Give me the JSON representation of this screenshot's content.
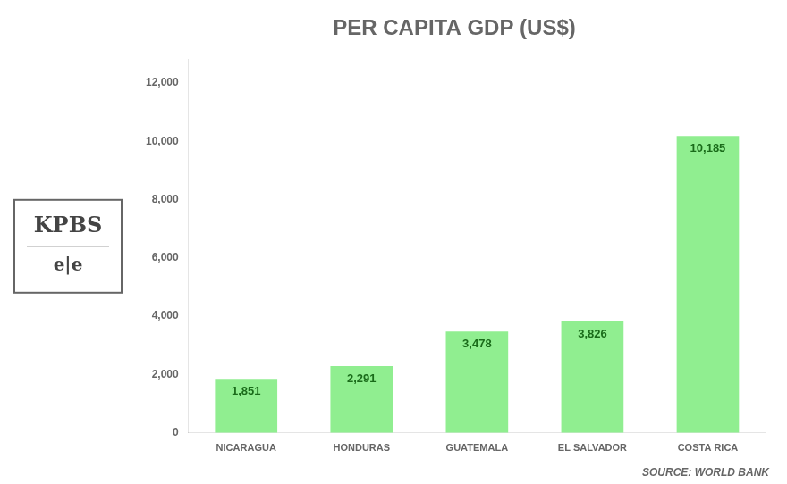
{
  "chart_data": {
    "type": "bar",
    "title": "PER CAPITA GDP (US$)",
    "categories": [
      "NICARAGUA",
      "HONDURAS",
      "GUATEMALA",
      "EL SALVADOR",
      "COSTA RICA"
    ],
    "values": [
      1851,
      2291,
      3478,
      3826,
      10185
    ],
    "value_labels": [
      "1,851",
      "2,291",
      "3,478",
      "3,826",
      "10,185"
    ],
    "data_labels": true,
    "color": "#90EE90",
    "ylim": [
      0,
      12800
    ],
    "yticks": [
      0,
      {
        "value": 2000,
        "label": "2,000"
      },
      {
        "value": 4000,
        "label": "4,000"
      },
      {
        "value": 6000,
        "label": "6,000"
      },
      {
        "value": 8000,
        "label": "8,000"
      },
      {
        "value": 10000,
        "label": "10,000"
      },
      {
        "value": 12000,
        "label": "12,000"
      }
    ],
    "grid": false,
    "annotations": [
      "SOURCE: WORLD BANK",
      "KPBS",
      "e|e"
    ]
  }
}
